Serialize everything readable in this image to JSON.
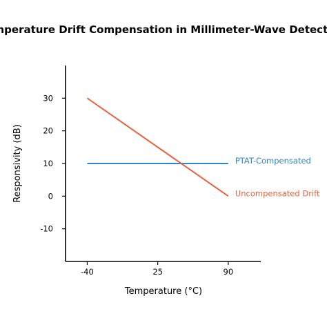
{
  "chart_data": {
    "type": "line",
    "title": "Temperature Drift Compensation in Millimeter-Wave Detectors",
    "xlabel": "Temperature (°C)",
    "ylabel": "Responsivity (dB)",
    "x_ticks": [
      "-40",
      "25",
      "90"
    ],
    "y_ticks": [
      "30",
      "20",
      "10",
      "0",
      "-10"
    ],
    "xlim": [
      -60,
      120
    ],
    "ylim": [
      -20,
      40
    ],
    "grid": false,
    "legend": "inline labels at line ends",
    "series": [
      {
        "name": "PTAT-Compensated",
        "color": "#2e86c1",
        "x": [
          -40,
          90
        ],
        "y": [
          10,
          10
        ]
      },
      {
        "name": "Uncompensated Drift",
        "color": "#e8603c",
        "x": [
          -40,
          90
        ],
        "y": [
          30,
          0
        ]
      }
    ]
  }
}
